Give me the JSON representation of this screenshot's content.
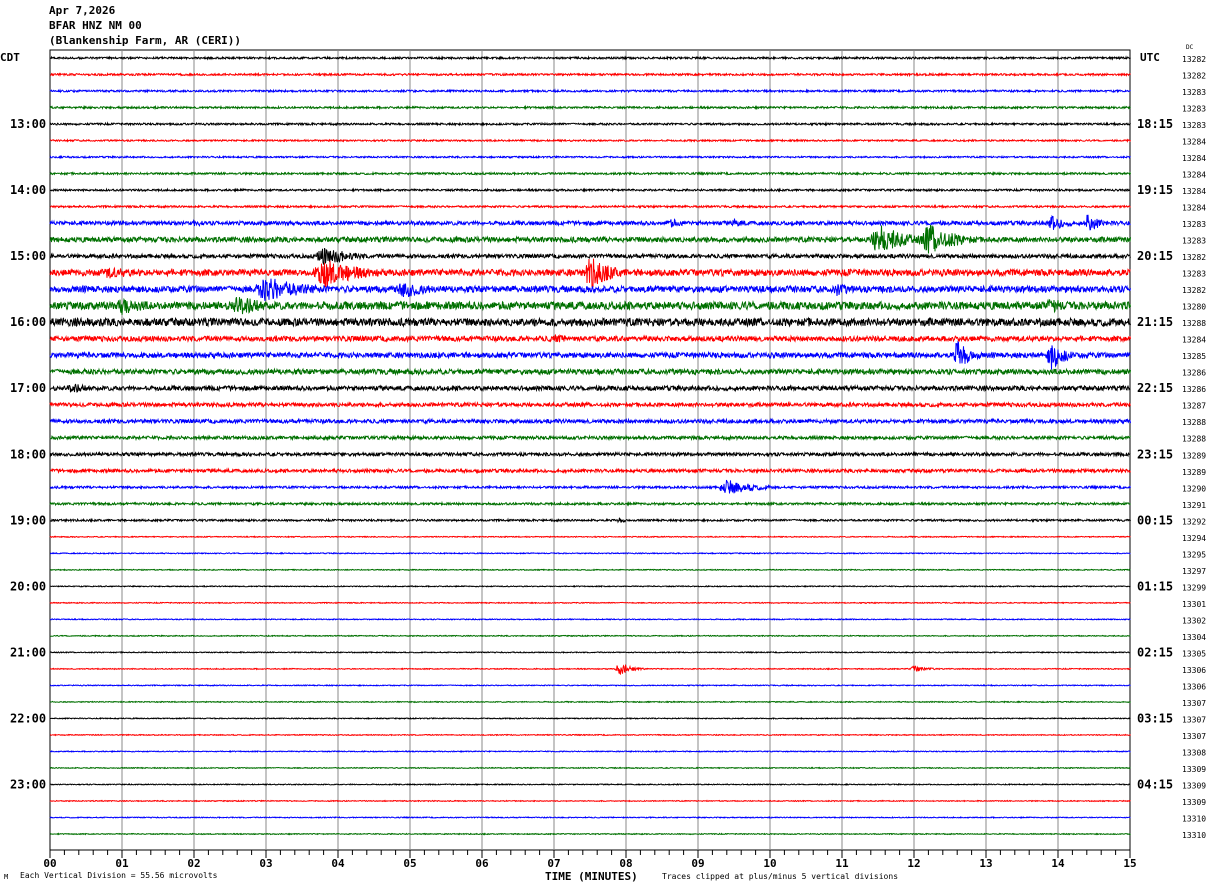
{
  "header": {
    "date": "Apr 7,2026",
    "station": "BFAR HNZ NM 00",
    "site": "(Blankenship Farm, AR (CERI))"
  },
  "footer": {
    "scale_note": "Each Vertical Division =   55.56 microvolts",
    "clip_note": "Traces clipped at plus/minus 5 vertical divisions",
    "corner_mark": "M"
  },
  "chart_data": {
    "type": "line",
    "title": "",
    "xlabel": "TIME (MINUTES)",
    "xlim": [
      0,
      15
    ],
    "x_ticks": [
      "00",
      "01",
      "02",
      "03",
      "04",
      "05",
      "06",
      "07",
      "08",
      "09",
      "10",
      "11",
      "12",
      "13",
      "14",
      "15"
    ],
    "grid": "vertical lines each minute",
    "left_axis_label": "CDT",
    "right_axis_label": "UTC",
    "dc_header": "DC",
    "left_hour_labels": [
      "13:00",
      "14:00",
      "15:00",
      "16:00",
      "17:00",
      "18:00",
      "19:00",
      "20:00",
      "21:00",
      "22:00",
      "23:00"
    ],
    "right_hour_labels": [
      "18:15",
      "19:15",
      "20:15",
      "21:15",
      "22:15",
      "23:15",
      "00:15",
      "01:15",
      "02:15",
      "03:15",
      "04:15"
    ],
    "trace_colors": [
      "#000000",
      "#ff0000",
      "#0000ff",
      "#007000"
    ],
    "dc_values": [
      13282,
      13282,
      13283,
      13283,
      13283,
      13284,
      13284,
      13284,
      13284,
      13284,
      13283,
      13283,
      13282,
      13283,
      13282,
      13280,
      13288,
      13284,
      13285,
      13286,
      13286,
      13287,
      13288,
      13288,
      13289,
      13289,
      13290,
      13291,
      13292,
      13294,
      13295,
      13297,
      13299,
      13301,
      13302,
      13304,
      13305,
      13306,
      13306,
      13307,
      13307,
      13307,
      13308,
      13309,
      13309,
      13309,
      13310,
      13310
    ],
    "noise_level_divisions": [
      0.3,
      0.3,
      0.3,
      0.3,
      0.3,
      0.25,
      0.25,
      0.3,
      0.3,
      0.3,
      0.6,
      0.8,
      0.6,
      1.0,
      1.0,
      1.2,
      1.2,
      0.8,
      0.8,
      0.8,
      0.7,
      0.6,
      0.6,
      0.5,
      0.5,
      0.5,
      0.35,
      0.35,
      0.3,
      0.15,
      0.15,
      0.15,
      0.15,
      0.15,
      0.15,
      0.15,
      0.15,
      0.15,
      0.15,
      0.15,
      0.15,
      0.15,
      0.15,
      0.15,
      0.15,
      0.15,
      0.15,
      0.15
    ],
    "events": [
      {
        "trace": 10,
        "minute": 2.0,
        "duration": 0.5,
        "amplitude": 1.2
      },
      {
        "trace": 10,
        "minute": 8.6,
        "duration": 0.6,
        "amplitude": 1.5
      },
      {
        "trace": 10,
        "minute": 9.5,
        "duration": 0.5,
        "amplitude": 1.5
      },
      {
        "trace": 10,
        "minute": 13.9,
        "duration": 0.6,
        "amplitude": 2.5
      },
      {
        "trace": 10,
        "minute": 14.4,
        "duration": 0.5,
        "amplitude": 3
      },
      {
        "trace": 11,
        "minute": 11.5,
        "duration": 1.0,
        "amplitude": 5
      },
      {
        "trace": 11,
        "minute": 12.2,
        "duration": 1.0,
        "amplitude": 5
      },
      {
        "trace": 12,
        "minute": 3.8,
        "duration": 1.0,
        "amplitude": 3
      },
      {
        "trace": 13,
        "minute": 0.8,
        "duration": 1.4,
        "amplitude": 2
      },
      {
        "trace": 13,
        "minute": 3.8,
        "duration": 1.2,
        "amplitude": 5
      },
      {
        "trace": 13,
        "minute": 7.5,
        "duration": 0.8,
        "amplitude": 5
      },
      {
        "trace": 14,
        "minute": 3.0,
        "duration": 1.5,
        "amplitude": 4
      },
      {
        "trace": 14,
        "minute": 4.9,
        "duration": 1.0,
        "amplitude": 3
      },
      {
        "trace": 14,
        "minute": 10.9,
        "duration": 0.6,
        "amplitude": 2.5
      },
      {
        "trace": 15,
        "minute": 1.0,
        "duration": 1.0,
        "amplitude": 3
      },
      {
        "trace": 15,
        "minute": 2.6,
        "duration": 1.4,
        "amplitude": 3
      },
      {
        "trace": 15,
        "minute": 13.9,
        "duration": 0.8,
        "amplitude": 2.5
      },
      {
        "trace": 16,
        "minute": 0.5,
        "duration": 0.9,
        "amplitude": 1.5
      },
      {
        "trace": 16,
        "minute": 10.5,
        "duration": 0.7,
        "amplitude": 1.5
      },
      {
        "trace": 17,
        "minute": 7.0,
        "duration": 1.0,
        "amplitude": 1.5
      },
      {
        "trace": 18,
        "minute": 12.6,
        "duration": 0.5,
        "amplitude": 5
      },
      {
        "trace": 18,
        "minute": 13.9,
        "duration": 0.5,
        "amplitude": 5
      },
      {
        "trace": 20,
        "minute": 0.3,
        "duration": 1.0,
        "amplitude": 1.5
      },
      {
        "trace": 26,
        "minute": 9.4,
        "duration": 1.0,
        "amplitude": 2.5
      },
      {
        "trace": 28,
        "minute": 7.9,
        "duration": 0.3,
        "amplitude": 1
      },
      {
        "trace": 37,
        "minute": 7.9,
        "duration": 0.4,
        "amplitude": 2
      },
      {
        "trace": 37,
        "minute": 12.0,
        "duration": 0.5,
        "amplitude": 1
      }
    ]
  }
}
